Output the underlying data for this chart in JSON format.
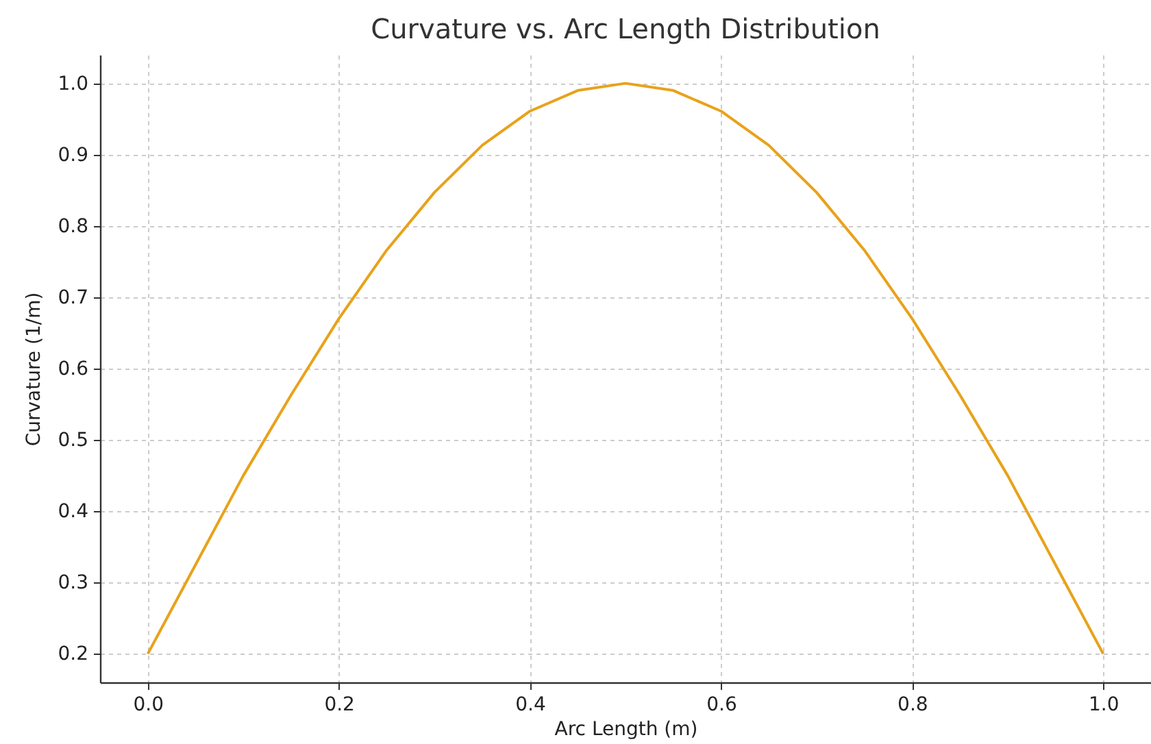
{
  "chart_data": {
    "type": "line",
    "title": "Curvature vs. Arc Length Distribution",
    "xlabel": "Arc Length (m)",
    "ylabel": "Curvature (1/m)",
    "x": [
      0,
      0.05,
      0.1,
      0.15,
      0.2,
      0.25,
      0.3,
      0.35,
      0.4,
      0.45,
      0.5,
      0.55,
      0.6,
      0.65,
      0.7,
      0.75,
      0.8,
      0.85,
      0.9,
      0.95,
      1.0
    ],
    "series": [
      {
        "color": "#e8a21a",
        "values": [
          0.2,
          0.325,
          0.45,
          0.563,
          0.67,
          0.766,
          0.847,
          0.913,
          0.961,
          0.99,
          1.0,
          0.99,
          0.961,
          0.913,
          0.847,
          0.766,
          0.67,
          0.563,
          0.45,
          0.325,
          0.2
        ]
      }
    ],
    "xlim": [
      -0.05,
      1.05
    ],
    "ylim": [
      0.16,
      1.04
    ],
    "xticks": [
      {
        "value": 0,
        "label": "0.0"
      },
      0.2,
      0.4,
      0.6,
      0.8,
      {
        "value": 1,
        "label": "1.0"
      }
    ],
    "yticks": [
      0.2,
      0.3,
      0.4,
      0.5,
      0.6,
      0.7,
      0.8,
      0.9,
      {
        "value": 1,
        "label": "1.0"
      }
    ],
    "grid": true,
    "line_style": "solid",
    "marker": "none"
  }
}
